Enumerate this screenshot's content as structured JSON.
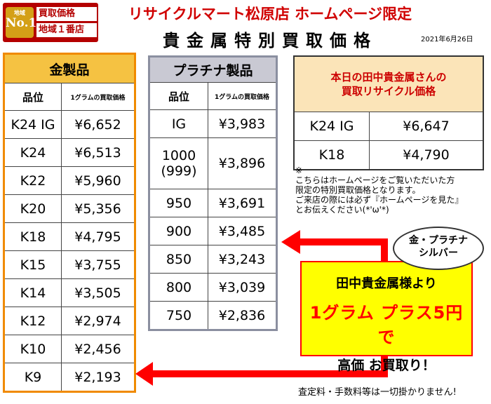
{
  "badge": {
    "area": "地域",
    "no1": "No.1",
    "line1": "買取価格",
    "line2": "地域１番店"
  },
  "header": {
    "store_title": "リサイクルマート松原店 ホームページ限定",
    "main_title": "貴金属特別買取価格",
    "date": "2021年6月26日"
  },
  "gold": {
    "title": "金製品",
    "col_grade": "品位",
    "col_price": "1グラムの買取価格",
    "rows": [
      {
        "grade": "K24 IG",
        "price": "¥6,652"
      },
      {
        "grade": "K24",
        "price": "¥6,513"
      },
      {
        "grade": "K22",
        "price": "¥5,960"
      },
      {
        "grade": "K20",
        "price": "¥5,356"
      },
      {
        "grade": "K18",
        "price": "¥4,795"
      },
      {
        "grade": "K15",
        "price": "¥3,755"
      },
      {
        "grade": "K14",
        "price": "¥3,505"
      },
      {
        "grade": "K12",
        "price": "¥2,974"
      },
      {
        "grade": "K10",
        "price": "¥2,456"
      },
      {
        "grade": "K9",
        "price": "¥2,193"
      }
    ]
  },
  "platinum": {
    "title": "プラチナ製品",
    "col_grade": "品位",
    "col_price": "1グラムの買取価格",
    "rows": [
      {
        "grade": "IG",
        "price": "¥3,983"
      },
      {
        "grade": "1000\n(999)",
        "price": "¥3,896"
      },
      {
        "grade": "950",
        "price": "¥3,691"
      },
      {
        "grade": "900",
        "price": "¥3,485"
      },
      {
        "grade": "850",
        "price": "¥3,243"
      },
      {
        "grade": "800",
        "price": "¥3,039"
      },
      {
        "grade": "750",
        "price": "¥2,836"
      }
    ]
  },
  "tanaka": {
    "title_line1": "本日の田中貴金属さんの",
    "title_line2": "買取リサイクル価格",
    "rows": [
      {
        "grade": "K24 IG",
        "price": "¥6,647"
      },
      {
        "grade": "K18",
        "price": "¥4,790"
      }
    ]
  },
  "note": {
    "mark": "※",
    "line1": "こちらはホームページをご覧いただいた方",
    "line2": "限定の特別買取価格となります。",
    "line3": "ご来店の際には必ず『ホームページを見た』",
    "line4": "とお伝えください(*'ω'*)"
  },
  "bubble": {
    "line1": "金・プラチナ",
    "line2": "シルバー"
  },
  "promo": {
    "line1": "田中貴金属様より",
    "line2": "1グラム プラス5円で",
    "line3": "高価 お買取り！"
  },
  "footer": "査定料・手数料等は一切掛かりません!",
  "colors": {
    "red": "#ff0000",
    "gold_border": "#f08a00",
    "gold_header": "#f5c242",
    "plat_header": "#c9c9d3",
    "promo_bg": "#ffff00"
  }
}
